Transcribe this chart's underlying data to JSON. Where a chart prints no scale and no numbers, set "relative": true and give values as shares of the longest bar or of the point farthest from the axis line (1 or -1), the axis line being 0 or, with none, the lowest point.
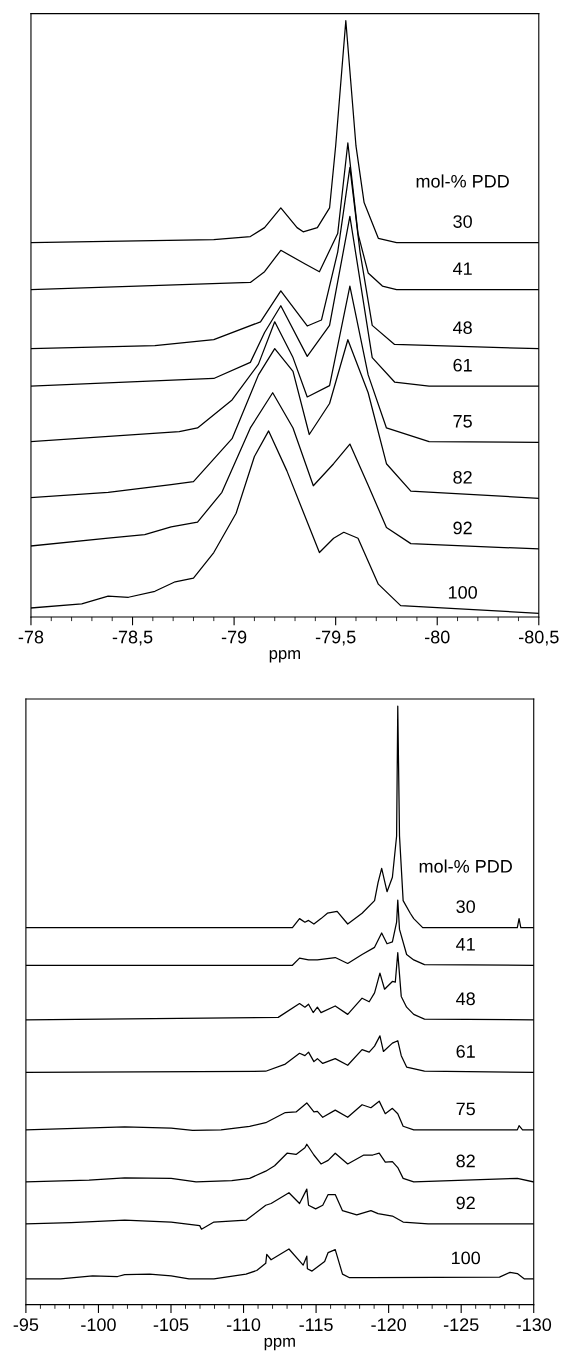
{
  "chart_data": [
    {
      "type": "line",
      "relative": true,
      "xlabel": "ppm",
      "legend_title": "mol-% PDD",
      "xlim": [
        -78,
        -80.5
      ],
      "xticks": [
        -78,
        {
          "value": -78.5,
          "label": "-78,5"
        },
        -79,
        {
          "value": -79.5,
          "label": "-79,5"
        },
        -80,
        {
          "value": -80.5,
          "label": "-80,5"
        }
      ],
      "series": [
        {
          "name": "30",
          "color": "#000000",
          "x": [
            -78,
            -78.9,
            -79.08,
            -79.15,
            -79.23,
            -79.31,
            -79.34,
            -79.41,
            -79.47,
            -79.5,
            -79.55,
            -79.6,
            -79.64,
            -79.71,
            -79.8,
            -80.5
          ],
          "values": [
            0.628,
            0.633,
            0.638,
            0.653,
            0.686,
            0.653,
            0.646,
            0.653,
            0.686,
            0.79,
            1.0,
            0.79,
            0.695,
            0.635,
            0.628,
            0.628
          ]
        },
        {
          "name": "41",
          "color": "#000000",
          "x": [
            -78,
            -79.08,
            -79.15,
            -79.23,
            -79.35,
            -79.42,
            -79.51,
            -79.56,
            -79.61,
            -79.66,
            -79.73,
            -79.8,
            -80.5
          ],
          "values": [
            0.549,
            0.561,
            0.579,
            0.615,
            0.592,
            0.579,
            0.643,
            0.795,
            0.643,
            0.577,
            0.555,
            0.549,
            0.549
          ]
        },
        {
          "name": "48",
          "color": "#000000",
          "x": [
            -78,
            -78.61,
            -78.9,
            -79.13,
            -79.23,
            -79.36,
            -79.43,
            -79.51,
            -79.57,
            -79.62,
            -79.68,
            -79.79,
            -80.5
          ],
          "values": [
            0.45,
            0.455,
            0.465,
            0.495,
            0.547,
            0.488,
            0.498,
            0.612,
            0.754,
            0.612,
            0.489,
            0.457,
            0.45
          ]
        },
        {
          "name": "61",
          "color": "#000000",
          "x": [
            -78,
            -78.9,
            -79.08,
            -79.15,
            -79.23,
            -79.36,
            -79.47,
            -79.57,
            -79.68,
            -79.79,
            -79.96,
            -80.5
          ],
          "values": [
            0.387,
            0.4,
            0.427,
            0.477,
            0.522,
            0.437,
            0.489,
            0.672,
            0.435,
            0.394,
            0.387,
            0.387
          ]
        },
        {
          "name": "75",
          "color": "#000000",
          "x": [
            -78,
            -78.73,
            -78.82,
            -78.99,
            -79.12,
            -79.2,
            -79.29,
            -79.36,
            -79.47,
            -79.57,
            -79.66,
            -79.75,
            -79.96,
            -80.5
          ],
          "values": [
            0.294,
            0.311,
            0.317,
            0.364,
            0.424,
            0.495,
            0.435,
            0.369,
            0.388,
            0.555,
            0.406,
            0.317,
            0.294,
            0.293
          ]
        },
        {
          "name": "82",
          "color": "#000000",
          "x": [
            -78,
            -78.38,
            -78.69,
            -78.8,
            -78.99,
            -79.12,
            -79.2,
            -79.29,
            -79.37,
            -79.47,
            -79.56,
            -79.66,
            -79.75,
            -79.87,
            -80.5
          ],
          "values": [
            0.2,
            0.209,
            0.222,
            0.227,
            0.299,
            0.406,
            0.45,
            0.412,
            0.306,
            0.358,
            0.465,
            0.376,
            0.257,
            0.211,
            0.199
          ]
        },
        {
          "name": "92",
          "color": "#000000",
          "x": [
            -78,
            -78.38,
            -78.56,
            -78.69,
            -78.82,
            -78.94,
            -79.08,
            -79.19,
            -79.29,
            -79.39,
            -79.49,
            -79.57,
            -79.66,
            -79.75,
            -79.87,
            -80.5
          ],
          "values": [
            0.119,
            0.132,
            0.138,
            0.151,
            0.159,
            0.209,
            0.317,
            0.376,
            0.317,
            0.22,
            0.257,
            0.29,
            0.221,
            0.15,
            0.123,
            0.114
          ]
        },
        {
          "name": "100",
          "color": "#000000",
          "x": [
            -78,
            -78.25,
            -78.38,
            -78.48,
            -78.61,
            -78.71,
            -78.8,
            -78.9,
            -79.01,
            -79.1,
            -79.17,
            -79.26,
            -79.42,
            -79.49,
            -79.54,
            -79.61,
            -79.71,
            -79.82,
            -80.5
          ],
          "values": [
            0.015,
            0.022,
            0.035,
            0.033,
            0.043,
            0.059,
            0.065,
            0.108,
            0.174,
            0.269,
            0.312,
            0.245,
            0.108,
            0.132,
            0.142,
            0.132,
            0.055,
            0.019,
            0.006
          ]
        }
      ]
    },
    {
      "type": "line",
      "relative": true,
      "xlabel": "ppm",
      "legend_title": "mol-% PDD",
      "xlim": [
        -95,
        -130
      ],
      "xticks": [
        -95,
        -100,
        -105,
        -110,
        -115,
        -120,
        -125,
        -130
      ],
      "series": [
        {
          "name": "30",
          "color": "#000000",
          "x": [
            -95,
            -113.37,
            -113.86,
            -114.23,
            -114.48,
            -114.85,
            -115.34,
            -115.78,
            -116.45,
            -117.18,
            -118.17,
            -119.03,
            -119.27,
            -119.52,
            -119.89,
            -120.26,
            -120.55,
            -120.63,
            -120.75,
            -121.0,
            -121.49,
            -121.73,
            -122.35,
            -128.87,
            -128.99,
            -129.11,
            -130
          ],
          "values": [
            0.63,
            0.63,
            0.645,
            0.639,
            0.642,
            0.636,
            0.645,
            0.654,
            0.657,
            0.636,
            0.654,
            0.675,
            0.705,
            0.729,
            0.69,
            0.714,
            0.783,
            1.0,
            0.783,
            0.675,
            0.654,
            0.645,
            0.63,
            0.63,
            0.645,
            0.63,
            0.63
          ]
        },
        {
          "name": "41",
          "color": "#000000",
          "x": [
            -95,
            -113.37,
            -113.86,
            -114.48,
            -115.09,
            -116.32,
            -117.18,
            -118.17,
            -119.03,
            -119.52,
            -119.89,
            -120.26,
            -120.55,
            -120.63,
            -120.75,
            -121.24,
            -121.73,
            -122.47,
            -130
          ],
          "values": [
            0.567,
            0.567,
            0.579,
            0.576,
            0.576,
            0.58,
            0.57,
            0.585,
            0.597,
            0.621,
            0.603,
            0.606,
            0.639,
            0.676,
            0.627,
            0.585,
            0.576,
            0.568,
            0.567
          ]
        },
        {
          "name": "48",
          "color": "#000000",
          "x": [
            -95,
            -112.39,
            -113.86,
            -114.23,
            -114.48,
            -114.8,
            -115.09,
            -115.34,
            -116.32,
            -117.18,
            -118.17,
            -118.66,
            -119.03,
            -119.4,
            -119.72,
            -120.26,
            -120.46,
            -120.63,
            -120.87,
            -121.24,
            -121.73,
            -122.47,
            -130
          ],
          "values": [
            0.476,
            0.48,
            0.503,
            0.497,
            0.502,
            0.488,
            0.497,
            0.488,
            0.499,
            0.485,
            0.512,
            0.506,
            0.521,
            0.554,
            0.527,
            0.54,
            0.539,
            0.588,
            0.515,
            0.497,
            0.485,
            0.477,
            0.476
          ]
        },
        {
          "name": "61",
          "color": "#000000",
          "x": [
            -95,
            -111.53,
            -112.88,
            -113.86,
            -114.23,
            -114.48,
            -114.85,
            -115.09,
            -115.46,
            -116.32,
            -117.18,
            -118.17,
            -118.66,
            -119.03,
            -119.4,
            -119.64,
            -120.26,
            -120.63,
            -120.87,
            -121.24,
            -122.47,
            -130
          ],
          "values": [
            0.388,
            0.39,
            0.402,
            0.42,
            0.416,
            0.422,
            0.406,
            0.411,
            0.403,
            0.411,
            0.4,
            0.426,
            0.422,
            0.432,
            0.449,
            0.423,
            0.437,
            0.441,
            0.416,
            0.397,
            0.39,
            0.388
          ]
        },
        {
          "name": "75",
          "color": "#000000",
          "x": [
            -95,
            -101.81,
            -105.01,
            -106.49,
            -108.45,
            -110.42,
            -111.53,
            -112.88,
            -113.62,
            -114.36,
            -114.85,
            -115.09,
            -115.46,
            -116.32,
            -117.18,
            -118.17,
            -118.78,
            -119.35,
            -119.77,
            -120.26,
            -120.63,
            -121.0,
            -121.73,
            -128.87,
            -128.99,
            -129.23,
            -130
          ],
          "values": [
            0.292,
            0.297,
            0.295,
            0.291,
            0.292,
            0.298,
            0.304,
            0.321,
            0.322,
            0.337,
            0.322,
            0.323,
            0.313,
            0.325,
            0.313,
            0.334,
            0.329,
            0.34,
            0.319,
            0.328,
            0.319,
            0.298,
            0.292,
            0.292,
            0.299,
            0.292,
            0.292
          ]
        },
        {
          "name": "82",
          "color": "#000000",
          "x": [
            -95,
            -99.35,
            -101.81,
            -105.01,
            -106.73,
            -109.19,
            -110.42,
            -111.53,
            -112.14,
            -113.0,
            -113.62,
            -114.23,
            -114.36,
            -114.85,
            -115.34,
            -115.83,
            -116.32,
            -117.18,
            -118.29,
            -118.91,
            -119.35,
            -119.77,
            -120.26,
            -120.63,
            -121.0,
            -121.73,
            -128.87,
            -130
          ],
          "values": [
            0.205,
            0.208,
            0.212,
            0.211,
            0.205,
            0.207,
            0.211,
            0.223,
            0.232,
            0.253,
            0.251,
            0.262,
            0.268,
            0.25,
            0.235,
            0.241,
            0.253,
            0.235,
            0.25,
            0.25,
            0.253,
            0.238,
            0.239,
            0.229,
            0.211,
            0.205,
            0.211,
            0.205
          ]
        },
        {
          "name": "92",
          "color": "#000000",
          "x": [
            -95,
            -98.12,
            -101.81,
            -105.01,
            -106.98,
            -107.1,
            -107.96,
            -110.17,
            -111.53,
            -111.9,
            -113.13,
            -113.86,
            -114.36,
            -114.48,
            -114.97,
            -115.46,
            -115.83,
            -116.32,
            -116.82,
            -117.8,
            -118.78,
            -119.27,
            -120.26,
            -121.0,
            -122.72,
            -130
          ],
          "values": [
            0.135,
            0.137,
            0.141,
            0.138,
            0.132,
            0.126,
            0.138,
            0.141,
            0.166,
            0.169,
            0.187,
            0.169,
            0.193,
            0.166,
            0.16,
            0.166,
            0.184,
            0.184,
            0.157,
            0.15,
            0.157,
            0.152,
            0.148,
            0.138,
            0.135,
            0.135
          ]
        },
        {
          "name": "100",
          "color": "#000000",
          "x": [
            -95,
            -97.39,
            -99.6,
            -101.32,
            -101.81,
            -103.53,
            -105.01,
            -106.24,
            -107.96,
            -110.17,
            -110.91,
            -111.53,
            -111.6,
            -111.9,
            -113.13,
            -114.11,
            -114.36,
            -114.4,
            -114.72,
            -115.59,
            -115.83,
            -116.32,
            -116.82,
            -117.31,
            -118.78,
            -127.64,
            -128.37,
            -128.87,
            -129.36,
            -130
          ],
          "values": [
            0.043,
            0.043,
            0.048,
            0.047,
            0.05,
            0.051,
            0.048,
            0.043,
            0.043,
            0.051,
            0.057,
            0.069,
            0.084,
            0.075,
            0.093,
            0.066,
            0.081,
            0.06,
            0.056,
            0.072,
            0.087,
            0.092,
            0.051,
            0.045,
            0.045,
            0.046,
            0.054,
            0.052,
            0.043,
            0.043
          ]
        }
      ]
    }
  ]
}
